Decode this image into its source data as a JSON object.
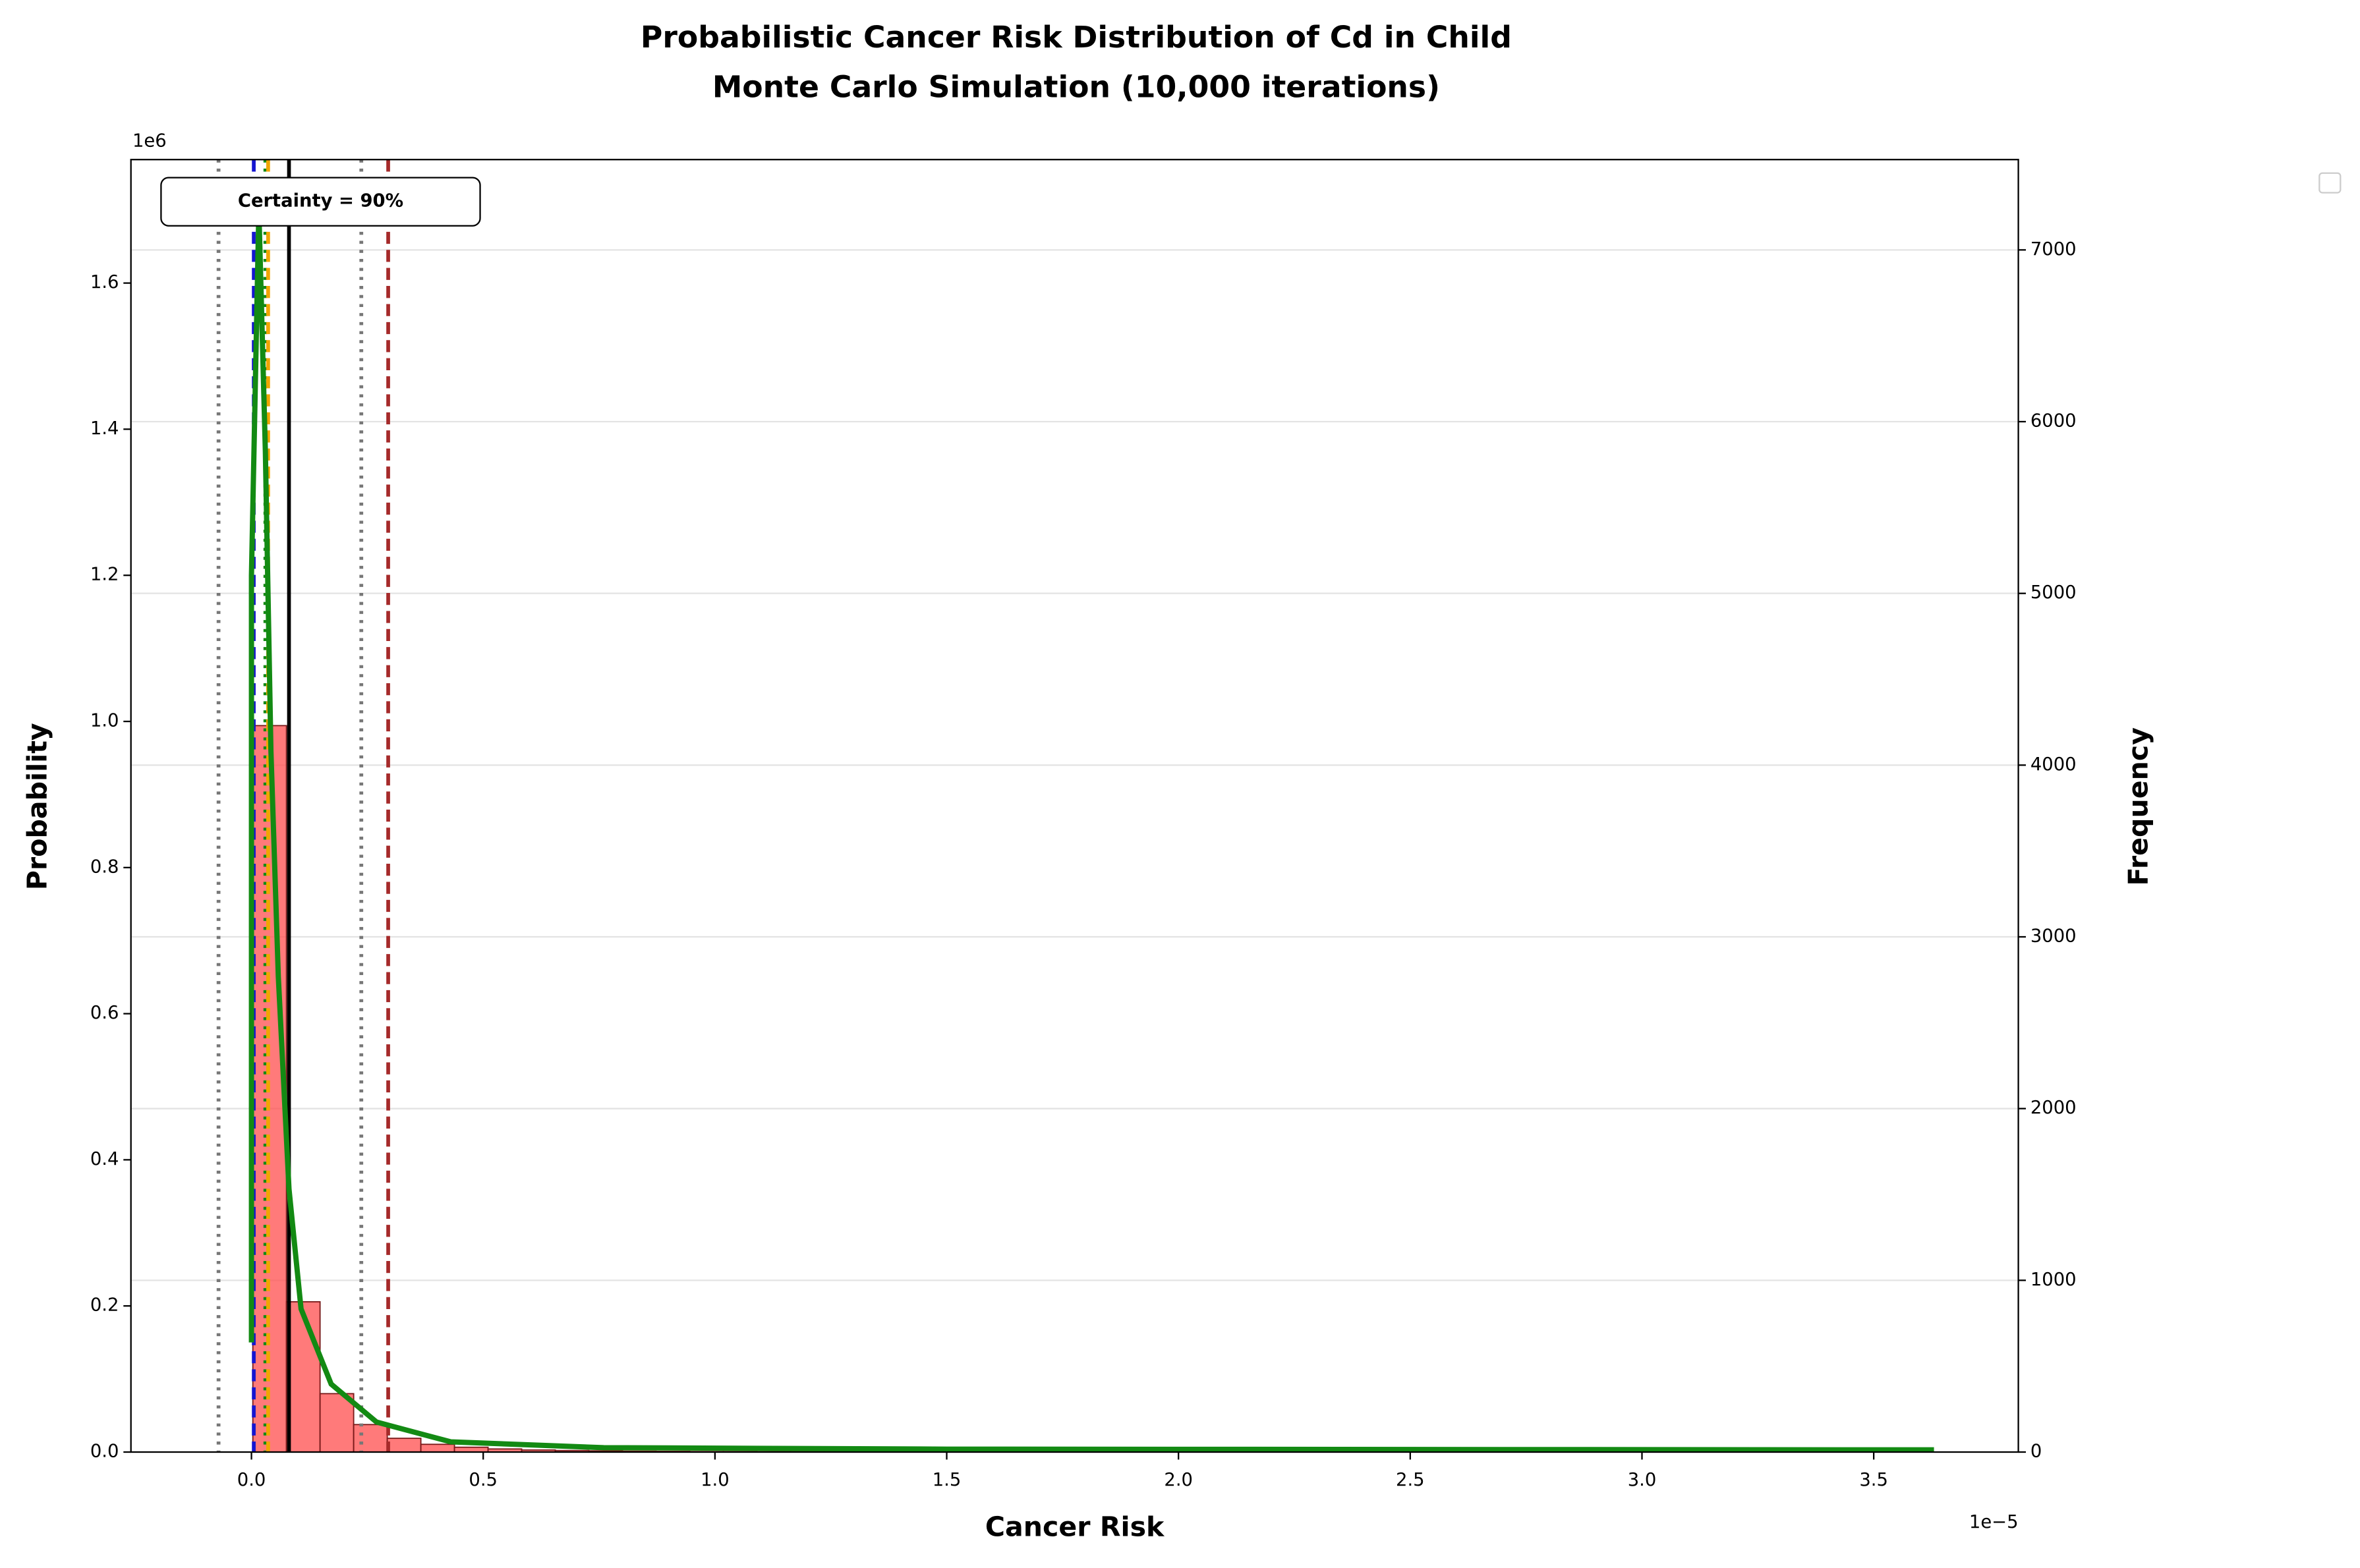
{
  "chart_data": {
    "type": "histogram",
    "title": "Probabilistic Cancer Risk Distribution of Cd in Child",
    "subtitle": "Monte Carlo Simulation (10,000 iterations)",
    "xlabel": "Cancer Risk",
    "ylabel": "Probability",
    "y2label": "Frequency",
    "x_offset_label": "1e−5",
    "y_offset_label": "1e6",
    "annotation": "Certainty = 90%",
    "bins": [
      0.003,
      0.0755,
      0.148,
      0.2205,
      0.293,
      0.3655,
      0.438,
      0.5105,
      0.583,
      0.6555,
      0.728,
      0.8005,
      0.873,
      0.9455,
      1.018,
      1.0905,
      1.163,
      1.2355,
      1.308,
      1.3805,
      1.453,
      1.5255,
      1.598,
      1.6705,
      1.743,
      1.8155,
      1.888,
      1.9605,
      2.033,
      2.1055,
      2.178,
      2.2505,
      2.323,
      2.3955,
      2.468,
      2.5405,
      2.613,
      2.6855,
      2.758,
      2.8305,
      2.903,
      2.9755,
      3.048,
      3.1205,
      3.193,
      3.2655,
      3.338,
      3.4105,
      3.483,
      3.5555,
      3.628
    ],
    "counts": [
      4230,
      875,
      340,
      160,
      80,
      45,
      28,
      18,
      12,
      9,
      7,
      5,
      4,
      3,
      3,
      2,
      2,
      2,
      1,
      1,
      1,
      1,
      1,
      1,
      0,
      1,
      0,
      1,
      0,
      0,
      1,
      0,
      0,
      0,
      1,
      0,
      0,
      0,
      0,
      0,
      0,
      1,
      0,
      0,
      0,
      0,
      0,
      0,
      0,
      1
    ],
    "counts_axis": "y2",
    "color": "#ff4d4d",
    "edgecolor": "#7a1a1a",
    "kde": {
      "color": "#138a13",
      "x": [
        0.0,
        0.0,
        0.016,
        0.03,
        0.042,
        0.058,
        0.081,
        0.107,
        0.172,
        0.27,
        0.43,
        0.76,
        1.5,
        3.63
      ],
      "y": [
        0.15,
        1.2,
        1.7,
        1.37,
        0.96,
        0.65,
        0.36,
        0.196,
        0.093,
        0.041,
        0.014,
        0.006,
        0.004,
        0.003
      ]
    },
    "vlines": [
      {
        "x": -0.071,
        "color": "#777777",
        "style": "dotted"
      },
      {
        "x": 0.005,
        "color": "#1515d0",
        "style": "dashed"
      },
      {
        "x": 0.03,
        "color": "#138a13",
        "style": "dotted"
      },
      {
        "x": 0.036,
        "color": "#f0a500",
        "style": "dashed"
      },
      {
        "x": 0.081,
        "color": "#000000",
        "style": "solid"
      },
      {
        "x": 0.237,
        "color": "#777777",
        "style": "dotted"
      },
      {
        "x": 0.295,
        "color": "#a52a2a",
        "style": "dashed"
      }
    ],
    "xlim": [
      -0.26,
      3.812
    ],
    "xticks": [
      {
        "value": 0,
        "label": "0.0"
      },
      0.5,
      {
        "value": 1,
        "label": "1.0"
      },
      1.5,
      {
        "value": 2,
        "label": "2.0"
      },
      2.5,
      {
        "value": 3,
        "label": "3.0"
      },
      3.5
    ],
    "ylim": [
      0,
      1.769
    ],
    "yticks": [
      {
        "value": 0,
        "label": "0.0"
      },
      0.2,
      0.4,
      0.6,
      0.8,
      {
        "value": 1,
        "label": "1.0"
      },
      1.2,
      1.4,
      1.6
    ],
    "y2lim": [
      0,
      7526
    ],
    "y2ticks": [
      0,
      1000,
      2000,
      3000,
      4000,
      5000,
      6000,
      7000
    ],
    "grid": true
  }
}
